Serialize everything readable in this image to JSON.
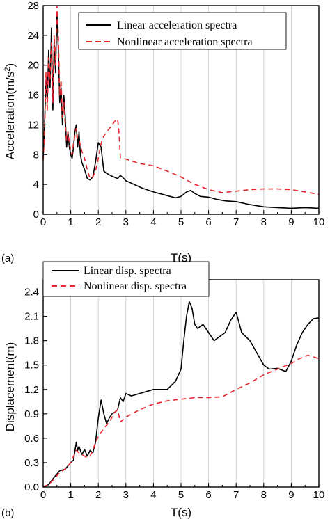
{
  "chart_data": [
    {
      "panel_label": "(a)",
      "type": "line",
      "xlabel": "T(s)",
      "ylabel": "Acceleration(m/s",
      "ylabel_sup": "2",
      "ylabel_close": ")",
      "xlim": [
        0,
        10
      ],
      "ylim": [
        0,
        28
      ],
      "xticks": [
        "0",
        "1",
        "2",
        "3",
        "4",
        "5",
        "6",
        "7",
        "8",
        "9",
        "10"
      ],
      "yticks": [
        "0",
        "4",
        "8",
        "12",
        "16",
        "20",
        "24",
        "28"
      ],
      "legend_position": "top-right",
      "series": [
        {
          "name": "Linear acceleration spectra",
          "color": "#000000",
          "dash": "solid",
          "x": [
            0,
            0.05,
            0.1,
            0.15,
            0.2,
            0.25,
            0.3,
            0.35,
            0.4,
            0.45,
            0.5,
            0.55,
            0.6,
            0.65,
            0.7,
            0.75,
            0.8,
            0.85,
            0.9,
            0.95,
            1.0,
            1.05,
            1.1,
            1.15,
            1.2,
            1.25,
            1.3,
            1.35,
            1.4,
            1.5,
            1.6,
            1.7,
            1.8,
            1.9,
            2.0,
            2.1,
            2.2,
            2.3,
            2.5,
            2.7,
            2.8,
            2.9,
            3.0,
            3.3,
            3.6,
            4.0,
            4.5,
            4.8,
            5.0,
            5.2,
            5.35,
            5.5,
            5.7,
            6.0,
            6.3,
            6.6,
            7.0,
            7.5,
            8.0,
            8.5,
            9.0,
            9.5,
            10.0
          ],
          "y": [
            7.5,
            12,
            18,
            15,
            22,
            17,
            25,
            14,
            23,
            19,
            27,
            22,
            15,
            17,
            12,
            16,
            13,
            9,
            11,
            9,
            8,
            7.5,
            9,
            11,
            12,
            9,
            11,
            8,
            7,
            6,
            4.8,
            4.6,
            5,
            7,
            9.6,
            9,
            5.8,
            5.5,
            5.1,
            4.8,
            5.2,
            4.9,
            4.5,
            4.0,
            3.5,
            3.0,
            2.5,
            2.2,
            2.4,
            3.0,
            3.2,
            2.8,
            2.4,
            2.3,
            2.0,
            1.8,
            1.7,
            1.3,
            1.0,
            0.9,
            0.8,
            0.9,
            0.8
          ]
        },
        {
          "name": "Nonlinear acceleration spectra",
          "color": "#e8232a",
          "dash": "dashed",
          "x": [
            0,
            0.05,
            0.1,
            0.15,
            0.2,
            0.25,
            0.3,
            0.35,
            0.4,
            0.45,
            0.5,
            0.55,
            0.6,
            0.65,
            0.7,
            0.75,
            0.8,
            0.85,
            0.9,
            0.95,
            1.0,
            1.05,
            1.1,
            1.15,
            1.2,
            1.25,
            1.3,
            1.4,
            1.5,
            1.6,
            1.7,
            1.8,
            1.9,
            2.0,
            2.1,
            2.2,
            2.3,
            2.4,
            2.5,
            2.6,
            2.7,
            2.75,
            2.8,
            3.0,
            3.5,
            4.0,
            4.5,
            5.0,
            5.5,
            6.0,
            6.5,
            7.0,
            7.5,
            8.0,
            8.5,
            9.0,
            9.5,
            9.8,
            10.0
          ],
          "y": [
            7.2,
            11,
            19,
            14,
            21,
            18,
            23,
            15,
            24,
            20,
            28,
            24,
            16,
            18,
            13,
            15,
            12,
            10,
            11,
            9.5,
            8.5,
            8,
            9.5,
            10.5,
            11.5,
            10,
            10,
            8.5,
            7.5,
            6,
            4.8,
            5,
            5.8,
            7.5,
            9.5,
            10.5,
            11,
            11.5,
            12,
            12.5,
            12.8,
            11,
            7.6,
            7.4,
            6.8,
            6.5,
            5.8,
            5.0,
            4.0,
            3.3,
            2.9,
            3.1,
            3.3,
            3.4,
            3.4,
            3.3,
            3.0,
            2.8,
            2.7
          ]
        }
      ]
    },
    {
      "panel_label": "(b)",
      "type": "line",
      "xlabel": "T(s)",
      "ylabel": "Displacement(m)",
      "xlim": [
        0,
        10
      ],
      "ylim": [
        0,
        2.55
      ],
      "xticks": [
        "0",
        "1",
        "2",
        "3",
        "4",
        "5",
        "6",
        "7",
        "8",
        "9",
        "10"
      ],
      "yticks": [
        "0.0",
        "0.3",
        "0.6",
        "0.9",
        "1.2",
        "1.5",
        "1.8",
        "2.1",
        "2.4"
      ],
      "legend_position": "top-left",
      "series": [
        {
          "name": "Linear disp. spectra",
          "color": "#000000",
          "dash": "solid",
          "x": [
            0,
            0.2,
            0.4,
            0.6,
            0.8,
            1.0,
            1.1,
            1.2,
            1.25,
            1.3,
            1.4,
            1.5,
            1.6,
            1.7,
            1.8,
            1.9,
            2.0,
            2.1,
            2.2,
            2.3,
            2.4,
            2.5,
            2.6,
            2.7,
            2.8,
            2.9,
            3.0,
            3.2,
            3.5,
            4.0,
            4.5,
            4.8,
            5.0,
            5.1,
            5.2,
            5.3,
            5.4,
            5.5,
            5.6,
            5.8,
            6.0,
            6.2,
            6.4,
            6.6,
            6.8,
            7.0,
            7.2,
            7.5,
            8.0,
            8.2,
            8.5,
            8.8,
            9.0,
            9.2,
            9.4,
            9.6,
            9.8,
            10.0
          ],
          "y": [
            0,
            0.03,
            0.12,
            0.2,
            0.22,
            0.3,
            0.33,
            0.55,
            0.45,
            0.5,
            0.4,
            0.46,
            0.38,
            0.45,
            0.42,
            0.55,
            0.85,
            1.07,
            0.9,
            0.78,
            0.85,
            0.9,
            0.92,
            0.95,
            1.1,
            1.05,
            1.15,
            1.12,
            1.15,
            1.2,
            1.2,
            1.3,
            1.45,
            1.8,
            2.1,
            2.28,
            2.2,
            2.0,
            1.95,
            2.0,
            1.9,
            1.8,
            1.85,
            1.9,
            2.05,
            2.15,
            1.9,
            1.8,
            1.5,
            1.45,
            1.46,
            1.42,
            1.55,
            1.75,
            1.9,
            2.0,
            2.07,
            2.08
          ]
        },
        {
          "name": "Nonlinear disp. spectra",
          "color": "#e8232a",
          "dash": "dashed",
          "x": [
            0,
            0.2,
            0.4,
            0.6,
            0.8,
            1.0,
            1.2,
            1.3,
            1.4,
            1.5,
            1.6,
            1.7,
            1.8,
            1.9,
            2.0,
            2.2,
            2.4,
            2.6,
            2.7,
            2.8,
            3.0,
            3.5,
            4.0,
            4.5,
            5.0,
            5.5,
            6.0,
            6.5,
            7.0,
            7.5,
            8.0,
            8.5,
            9.0,
            9.3,
            9.6,
            9.8,
            10.0
          ],
          "y": [
            0,
            0.03,
            0.1,
            0.18,
            0.22,
            0.3,
            0.45,
            0.42,
            0.4,
            0.38,
            0.36,
            0.38,
            0.45,
            0.55,
            0.62,
            0.72,
            0.8,
            0.92,
            0.95,
            0.8,
            0.86,
            0.95,
            1.02,
            1.06,
            1.08,
            1.1,
            1.1,
            1.11,
            1.2,
            1.28,
            1.38,
            1.45,
            1.52,
            1.58,
            1.62,
            1.6,
            1.58
          ]
        }
      ]
    }
  ]
}
